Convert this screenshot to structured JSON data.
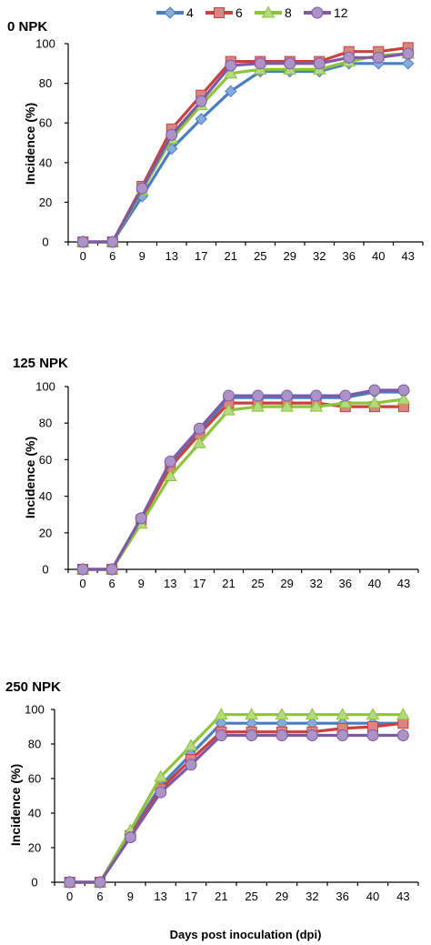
{
  "legend": {
    "items": [
      {
        "label": "4",
        "color": "#4a7ec3",
        "marker": "diamond"
      },
      {
        "label": "6",
        "color": "#c9413d",
        "marker": "square"
      },
      {
        "label": "8",
        "color": "#8cc43c",
        "marker": "triangle"
      },
      {
        "label": "12",
        "color": "#7e5aa6",
        "marker": "circle"
      }
    ]
  },
  "chart_data": [
    {
      "type": "line",
      "title": "0 NPK",
      "ylabel": "Incidence (%)",
      "xlabel": "",
      "categories": [
        "0",
        "6",
        "9",
        "13",
        "17",
        "21",
        "25",
        "29",
        "32",
        "36",
        "40",
        "43"
      ],
      "ylim": [
        0,
        100
      ],
      "yticks": [
        0,
        20,
        40,
        60,
        80,
        100
      ],
      "series": [
        {
          "name": "4",
          "values": [
            0,
            0,
            23,
            47,
            62,
            76,
            86,
            86,
            86,
            90,
            90,
            90
          ]
        },
        {
          "name": "6",
          "values": [
            0,
            0,
            28,
            57,
            74,
            91,
            91,
            91,
            91,
            96,
            96,
            98
          ]
        },
        {
          "name": "8",
          "values": [
            0,
            0,
            26,
            52,
            69,
            85,
            87,
            87,
            87,
            91,
            94,
            95
          ]
        },
        {
          "name": "12",
          "values": [
            0,
            0,
            27,
            54,
            71,
            89,
            90,
            90,
            90,
            93,
            93,
            95
          ]
        }
      ]
    },
    {
      "type": "line",
      "title": "125 NPK",
      "ylabel": "Incidence (%)",
      "xlabel": "",
      "categories": [
        "0",
        "6",
        "9",
        "13",
        "17",
        "21",
        "25",
        "29",
        "32",
        "36",
        "40",
        "43"
      ],
      "ylim": [
        0,
        100
      ],
      "yticks": [
        0,
        20,
        40,
        60,
        80,
        100
      ],
      "series": [
        {
          "name": "4",
          "values": [
            0,
            0,
            28,
            58,
            75,
            94,
            94,
            94,
            94,
            94,
            97,
            97
          ]
        },
        {
          "name": "6",
          "values": [
            0,
            0,
            27,
            56,
            74,
            91,
            91,
            91,
            91,
            89,
            89,
            89
          ]
        },
        {
          "name": "8",
          "values": [
            0,
            0,
            25,
            51,
            69,
            87,
            89,
            89,
            89,
            91,
            91,
            93
          ]
        },
        {
          "name": "12",
          "values": [
            0,
            0,
            28,
            59,
            77,
            95,
            95,
            95,
            95,
            95,
            98,
            98
          ]
        }
      ]
    },
    {
      "type": "line",
      "title": "250 NPK",
      "ylabel": "Incidence (%)",
      "xlabel": "Days post inoculation (dpi)",
      "categories": [
        "0",
        "6",
        "9",
        "13",
        "17",
        "21",
        "25",
        "29",
        "32",
        "36",
        "40",
        "43"
      ],
      "ylim": [
        0,
        100
      ],
      "yticks": [
        0,
        20,
        40,
        60,
        80,
        100
      ],
      "series": [
        {
          "name": "4",
          "values": [
            0,
            0,
            28,
            56,
            74,
            92,
            92,
            92,
            92,
            92,
            92,
            92
          ]
        },
        {
          "name": "6",
          "values": [
            0,
            0,
            27,
            54,
            71,
            87,
            87,
            87,
            87,
            89,
            90,
            92
          ]
        },
        {
          "name": "8",
          "values": [
            0,
            0,
            30,
            61,
            79,
            97,
            97,
            97,
            97,
            97,
            97,
            97
          ]
        },
        {
          "name": "12",
          "values": [
            0,
            0,
            26,
            52,
            68,
            85,
            85,
            85,
            85,
            85,
            85,
            85
          ]
        }
      ]
    }
  ]
}
